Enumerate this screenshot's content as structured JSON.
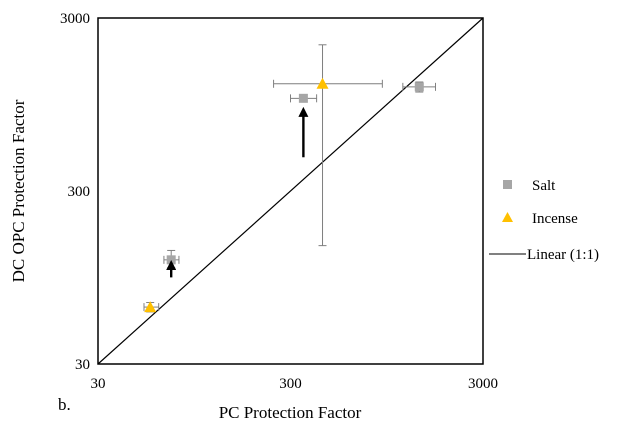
{
  "chart_data": {
    "type": "scatter",
    "panel_label": "b.",
    "xlabel": "PC Protection Factor",
    "ylabel": "DC OPC Protection Factor",
    "x_scale": "log",
    "y_scale": "log",
    "xlim": [
      30,
      3000
    ],
    "ylim": [
      30,
      3000
    ],
    "x_ticks": [
      "30",
      "300",
      "3000"
    ],
    "y_ticks": [
      "30",
      "300",
      "3000"
    ],
    "grid": false,
    "legend_position": "right",
    "series": [
      {
        "name": "Salt",
        "marker": "square",
        "color": "#a6a6a6",
        "points": [
          {
            "x": 72,
            "y": 120,
            "x_err": [
              66,
              79
            ],
            "y_err": [
              108,
              136
            ]
          },
          {
            "x": 350,
            "y": 1030,
            "x_err": [
              300,
              410
            ],
            "y_err": [
              990,
              1080
            ]
          },
          {
            "x": 1400,
            "y": 1200,
            "x_err": [
              1150,
              1700
            ],
            "y_err": [
              1120,
              1280
            ]
          }
        ]
      },
      {
        "name": "Incense",
        "marker": "triangle",
        "color": "#ffc000",
        "points": [
          {
            "x": 56,
            "y": 64,
            "x_err": [
              52,
              62
            ],
            "y_err": [
              60,
              68
            ]
          },
          {
            "x": 440,
            "y": 1250,
            "x_err": [
              245,
              900
            ],
            "y_err": [
              145,
              2100
            ]
          }
        ]
      },
      {
        "name": "Linear (1:1)",
        "marker": "line",
        "color": "#000000",
        "points": [
          {
            "x": 30,
            "y": 30
          },
          {
            "x": 3000,
            "y": 3000
          }
        ]
      }
    ],
    "annotations": [
      {
        "type": "arrow",
        "direction": "up",
        "at_x": 350,
        "y_from": 470,
        "y_to": 860
      },
      {
        "type": "arrow",
        "direction": "up",
        "at_x": 72,
        "y_from": 95,
        "y_to": 112
      }
    ]
  }
}
